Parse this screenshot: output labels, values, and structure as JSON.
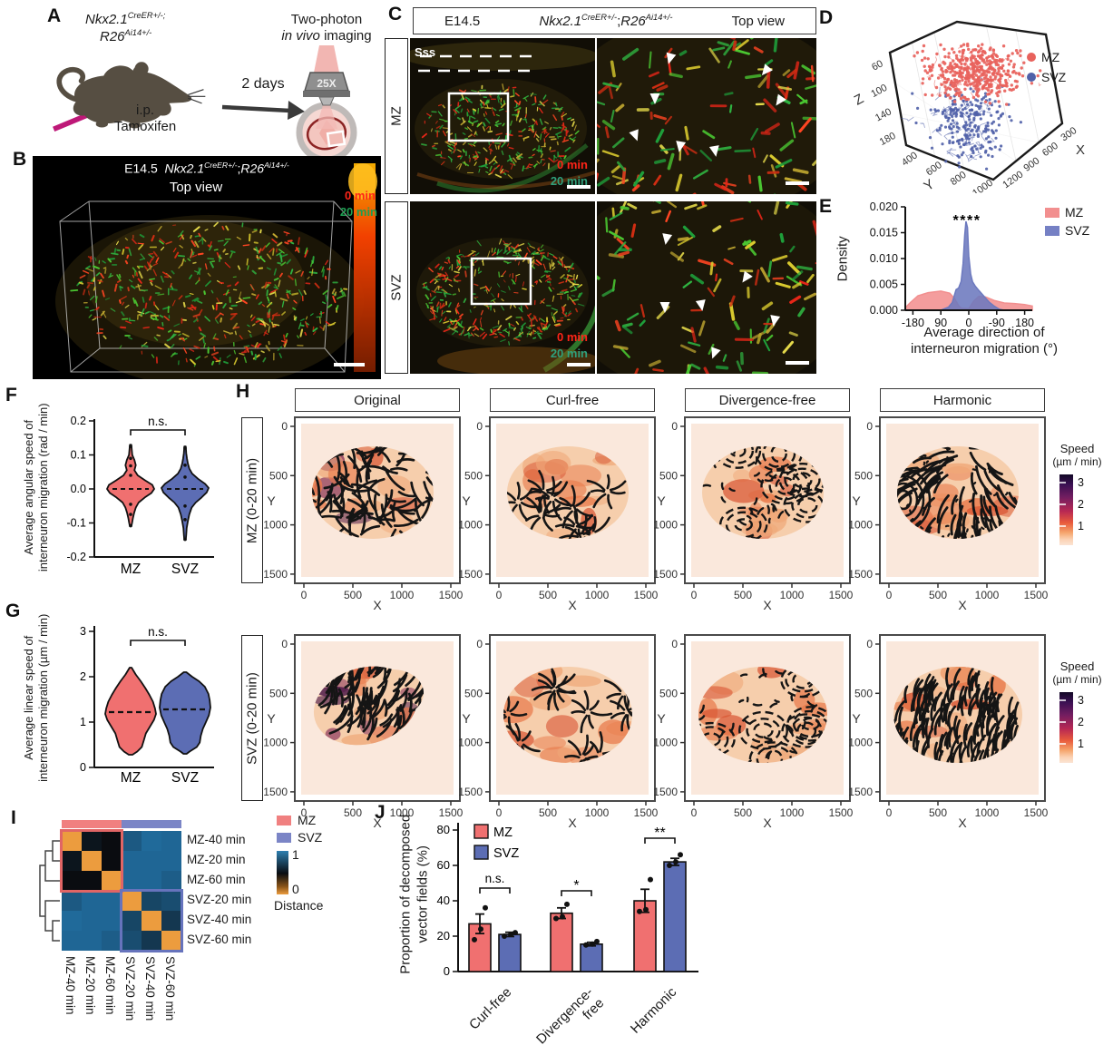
{
  "panels": {
    "a": "A",
    "b": "B",
    "c": "C",
    "d": "D",
    "e": "E",
    "f": "F",
    "g": "G",
    "h": "H",
    "i": "I",
    "j": "J"
  },
  "panel_a": {
    "genotype": {
      "g1": "Nkx2.1",
      "s1": "CreER+/-;",
      "g2": "R26",
      "s2": "Ai14+/-"
    },
    "duration": "2 days",
    "injection_route": "i.p.",
    "injection_drug": "Tamoxifen",
    "method_line1": "Two-photon",
    "method_italic": "in vivo",
    "method_rest": " imaging",
    "objective": "25X"
  },
  "panel_b": {
    "age": "E14.5",
    "genotype": {
      "g1": "Nkx2.1",
      "s1": "CreER+/-",
      "sep": ";",
      "g2": "R26",
      "s2": "Ai14+/-"
    },
    "view": "Top view",
    "time_0": "0 min",
    "time_20": "20 min"
  },
  "panel_c": {
    "age": "E14.5",
    "genotype": {
      "g1": "Nkx2.1",
      "s1": "CreER+/-",
      "sep": ";",
      "g2": "R26",
      "s2": "Ai14+/-"
    },
    "view": "Top view",
    "row_top": "MZ",
    "row_bottom": "SVZ",
    "sss": "Sss",
    "time_0": "0 min",
    "time_20": "20 min"
  },
  "chart_data": [
    {
      "id": "D",
      "type": "scatter",
      "projection": "3d",
      "legend": [
        {
          "name": "MZ",
          "color": "#E8625C"
        },
        {
          "name": "SVZ",
          "color": "#5060A8"
        }
      ],
      "axes": {
        "x": {
          "label": "X",
          "ticks": [
            "300",
            "600",
            "900",
            "1200"
          ]
        },
        "y": {
          "label": "Y",
          "ticks": [
            "400",
            "600",
            "800",
            "1000"
          ]
        },
        "z": {
          "label": "Z",
          "ticks": [
            "60",
            "100",
            "140",
            "180"
          ]
        }
      },
      "clusters": [
        {
          "name": "MZ",
          "approx_z_range": [
            40,
            115
          ],
          "n_points": 430
        },
        {
          "name": "SVZ",
          "approx_z_range": [
            95,
            195
          ],
          "n_points": 220
        }
      ]
    },
    {
      "id": "E",
      "type": "area",
      "ylabel": "Density",
      "xlabel_lines": [
        "Average direction of",
        "interneuron migration (°)"
      ],
      "yticks": [
        "0.020",
        "0.015",
        "0.010",
        "0.005",
        "0.000"
      ],
      "xticks": [
        "-180",
        "90",
        "0",
        "-90",
        "180"
      ],
      "ylim": [
        0,
        0.02
      ],
      "significance": "****",
      "series": [
        {
          "name": "MZ",
          "color": "#F28F8F",
          "points": [
            [
              0,
              0.0005
            ],
            [
              0.04,
              0.0015
            ],
            [
              0.1,
              0.0028
            ],
            [
              0.18,
              0.0034
            ],
            [
              0.28,
              0.0037
            ],
            [
              0.35,
              0.0033
            ],
            [
              0.39,
              0.0022
            ],
            [
              0.42,
              0.0009
            ],
            [
              0.44,
              0.0004
            ],
            [
              0.5,
              0.0003
            ],
            [
              0.54,
              0.0018
            ],
            [
              0.58,
              0.0027
            ],
            [
              0.63,
              0.0026
            ],
            [
              0.7,
              0.0019
            ],
            [
              0.78,
              0.0014
            ],
            [
              0.86,
              0.0013
            ],
            [
              0.94,
              0.0011
            ],
            [
              1,
              0.0008
            ]
          ]
        },
        {
          "name": "SVZ",
          "color": "#6C79BE",
          "points": [
            [
              0.28,
              0
            ],
            [
              0.34,
              0.0006
            ],
            [
              0.37,
              0.0015
            ],
            [
              0.4,
              0.004
            ],
            [
              0.42,
              0.0043
            ],
            [
              0.44,
              0.0056
            ],
            [
              0.455,
              0.009
            ],
            [
              0.468,
              0.0145
            ],
            [
              0.478,
              0.0172
            ],
            [
              0.49,
              0.016
            ],
            [
              0.5,
              0.0105
            ],
            [
              0.515,
              0.007
            ],
            [
              0.53,
              0.0055
            ],
            [
              0.55,
              0.0047
            ],
            [
              0.58,
              0.0038
            ],
            [
              0.62,
              0.0027
            ],
            [
              0.66,
              0.0016
            ],
            [
              0.7,
              0.0008
            ],
            [
              0.74,
              0.0002
            ],
            [
              0.78,
              0
            ]
          ]
        }
      ]
    },
    {
      "id": "F",
      "type": "violin",
      "ylabel_lines": [
        "Average angular speed of",
        "interneuron migration (rad / min)"
      ],
      "ylim": [
        -0.2,
        0.2
      ],
      "yticks": [
        "0.2",
        "0.1",
        "0.0",
        "-0.1",
        "-0.2"
      ],
      "categories": [
        "MZ",
        "SVZ"
      ],
      "significance": "n.s.",
      "series": [
        {
          "name": "MZ",
          "color": "#F07070",
          "median": 0.0,
          "min": -0.11,
          "max": 0.13,
          "profile": [
            [
              0.13,
              0.03
            ],
            [
              0.115,
              0.05
            ],
            [
              0.1,
              0.07
            ],
            [
              0.085,
              0.16
            ],
            [
              0.07,
              0.22
            ],
            [
              0.055,
              0.16
            ],
            [
              0.04,
              0.3
            ],
            [
              0.025,
              0.62
            ],
            [
              0.012,
              0.92
            ],
            [
              0,
              1
            ],
            [
              -0.012,
              0.88
            ],
            [
              -0.025,
              0.6
            ],
            [
              -0.04,
              0.34
            ],
            [
              -0.055,
              0.22
            ],
            [
              -0.07,
              0.15
            ],
            [
              -0.085,
              0.1
            ],
            [
              -0.1,
              0.06
            ],
            [
              -0.11,
              0.03
            ]
          ],
          "dots": [
            0.125,
            0.09,
            0.068,
            0.04,
            -0.045,
            -0.075,
            -0.108
          ]
        },
        {
          "name": "SVZ",
          "color": "#5C6DB4",
          "median": 0.0,
          "min": -0.15,
          "max": 0.125,
          "profile": [
            [
              0.125,
              0.03
            ],
            [
              0.105,
              0.05
            ],
            [
              0.09,
              0.08
            ],
            [
              0.075,
              0.12
            ],
            [
              0.06,
              0.18
            ],
            [
              0.045,
              0.3
            ],
            [
              0.03,
              0.55
            ],
            [
              0.015,
              0.85
            ],
            [
              0.003,
              1
            ],
            [
              -0.01,
              0.92
            ],
            [
              -0.025,
              0.7
            ],
            [
              -0.04,
              0.45
            ],
            [
              -0.055,
              0.28
            ],
            [
              -0.075,
              0.18
            ],
            [
              -0.095,
              0.12
            ],
            [
              -0.115,
              0.07
            ],
            [
              -0.135,
              0.05
            ],
            [
              -0.15,
              0.03
            ]
          ],
          "dots": [
            0.12,
            0.07,
            0.035,
            -0.05,
            -0.09,
            -0.148
          ]
        }
      ]
    },
    {
      "id": "G",
      "type": "violin",
      "ylabel_lines": [
        "Average linear speed of",
        "interneuron migration (µm / min)"
      ],
      "ylim": [
        0,
        3
      ],
      "yticks": [
        "3",
        "2",
        "1",
        "0"
      ],
      "categories": [
        "MZ",
        "SVZ"
      ],
      "significance": "n.s.",
      "series": [
        {
          "name": "MZ",
          "color": "#F07070",
          "median": 1.22,
          "profile": [
            [
              2.2,
              0.04
            ],
            [
              2.05,
              0.2
            ],
            [
              1.9,
              0.4
            ],
            [
              1.75,
              0.58
            ],
            [
              1.6,
              0.74
            ],
            [
              1.45,
              0.88
            ],
            [
              1.3,
              0.96
            ],
            [
              1.18,
              1
            ],
            [
              1.05,
              0.92
            ],
            [
              0.9,
              0.76
            ],
            [
              0.75,
              0.6
            ],
            [
              0.6,
              0.52
            ],
            [
              0.45,
              0.44
            ],
            [
              0.35,
              0.26
            ],
            [
              0.28,
              0.07
            ]
          ]
        },
        {
          "name": "SVZ",
          "color": "#5C6DB4",
          "median": 1.28,
          "profile": [
            [
              2.1,
              0.05
            ],
            [
              2,
              0.28
            ],
            [
              1.9,
              0.55
            ],
            [
              1.78,
              0.78
            ],
            [
              1.62,
              0.92
            ],
            [
              1.48,
              0.97
            ],
            [
              1.32,
              1
            ],
            [
              1.15,
              0.94
            ],
            [
              1,
              0.82
            ],
            [
              0.85,
              0.7
            ],
            [
              0.7,
              0.62
            ],
            [
              0.55,
              0.58
            ],
            [
              0.45,
              0.46
            ],
            [
              0.35,
              0.18
            ],
            [
              0.3,
              0.06
            ]
          ]
        }
      ]
    },
    {
      "id": "H",
      "type": "vector-field-grid",
      "columns": [
        "Original",
        "Curl-free",
        "Divergence-free",
        "Harmonic"
      ],
      "rows": [
        "MZ (0-20 min)",
        "SVZ (0-20 min)"
      ],
      "axis_ticks": [
        "0",
        "500",
        "1000",
        "1500"
      ],
      "xlabel": "X",
      "ylabel": "Y",
      "colorbar": {
        "title": "Speed",
        "unit": "(µm / min)",
        "ticks": [
          "3",
          "2",
          "1"
        ]
      }
    },
    {
      "id": "I",
      "type": "heatmap",
      "labels": [
        "MZ-40 min",
        "MZ-20 min",
        "MZ-60 min",
        "SVZ-20 min",
        "SVZ-40 min",
        "SVZ-60 min"
      ],
      "matrix": [
        [
          0,
          0.55,
          0.5,
          0.93,
          1.02,
          1
        ],
        [
          0.55,
          0,
          0.5,
          1,
          1,
          1
        ],
        [
          0.5,
          0.5,
          0,
          1,
          1,
          0.95
        ],
        [
          0.93,
          1,
          1,
          0,
          0.82,
          0.86
        ],
        [
          1.02,
          1,
          1,
          0.82,
          0,
          0.74
        ],
        [
          1,
          1,
          0.95,
          0.86,
          0.74,
          0
        ]
      ],
      "legend": {
        "mz": "MZ",
        "svz": "SVZ",
        "mz_color": "#F08080",
        "svz_color": "#7B85C6"
      },
      "scale": {
        "top": "1",
        "bottom": "0",
        "title": "Distance"
      },
      "palette": {
        "low": "#EC9C3E",
        "mid": "#0A0C10",
        "high": "#1F6695"
      }
    },
    {
      "id": "J",
      "type": "bar",
      "ylabel_lines": [
        "Proportion of decomposed",
        "vector fields (%)"
      ],
      "ylim": [
        0,
        80
      ],
      "yticks": [
        "80",
        "60",
        "40",
        "20",
        "0"
      ],
      "categories": [
        "Curl-free",
        "Divergence-free",
        "Harmonic"
      ],
      "categories_lines": [
        [
          "Curl-free"
        ],
        [
          "Divergence-",
          "free"
        ],
        [
          "Harmonic"
        ]
      ],
      "significance": [
        "n.s.",
        "*",
        "**"
      ],
      "series": [
        {
          "name": "MZ",
          "color": "#F07070",
          "values": [
            27,
            33,
            40
          ],
          "errors": [
            5.5,
            3,
            6.5
          ],
          "points": [
            [
              18,
              24,
              36
            ],
            [
              30,
              31,
              38
            ],
            [
              34,
              35,
              52
            ]
          ]
        },
        {
          "name": "SVZ",
          "color": "#5C6DB4",
          "values": [
            21,
            15.5,
            62
          ],
          "errors": [
            1.2,
            1,
            2
          ],
          "points": [
            [
              20,
              21,
              22
            ],
            [
              15,
              15.5,
              17
            ],
            [
              60,
              62,
              66
            ]
          ]
        }
      ]
    }
  ]
}
